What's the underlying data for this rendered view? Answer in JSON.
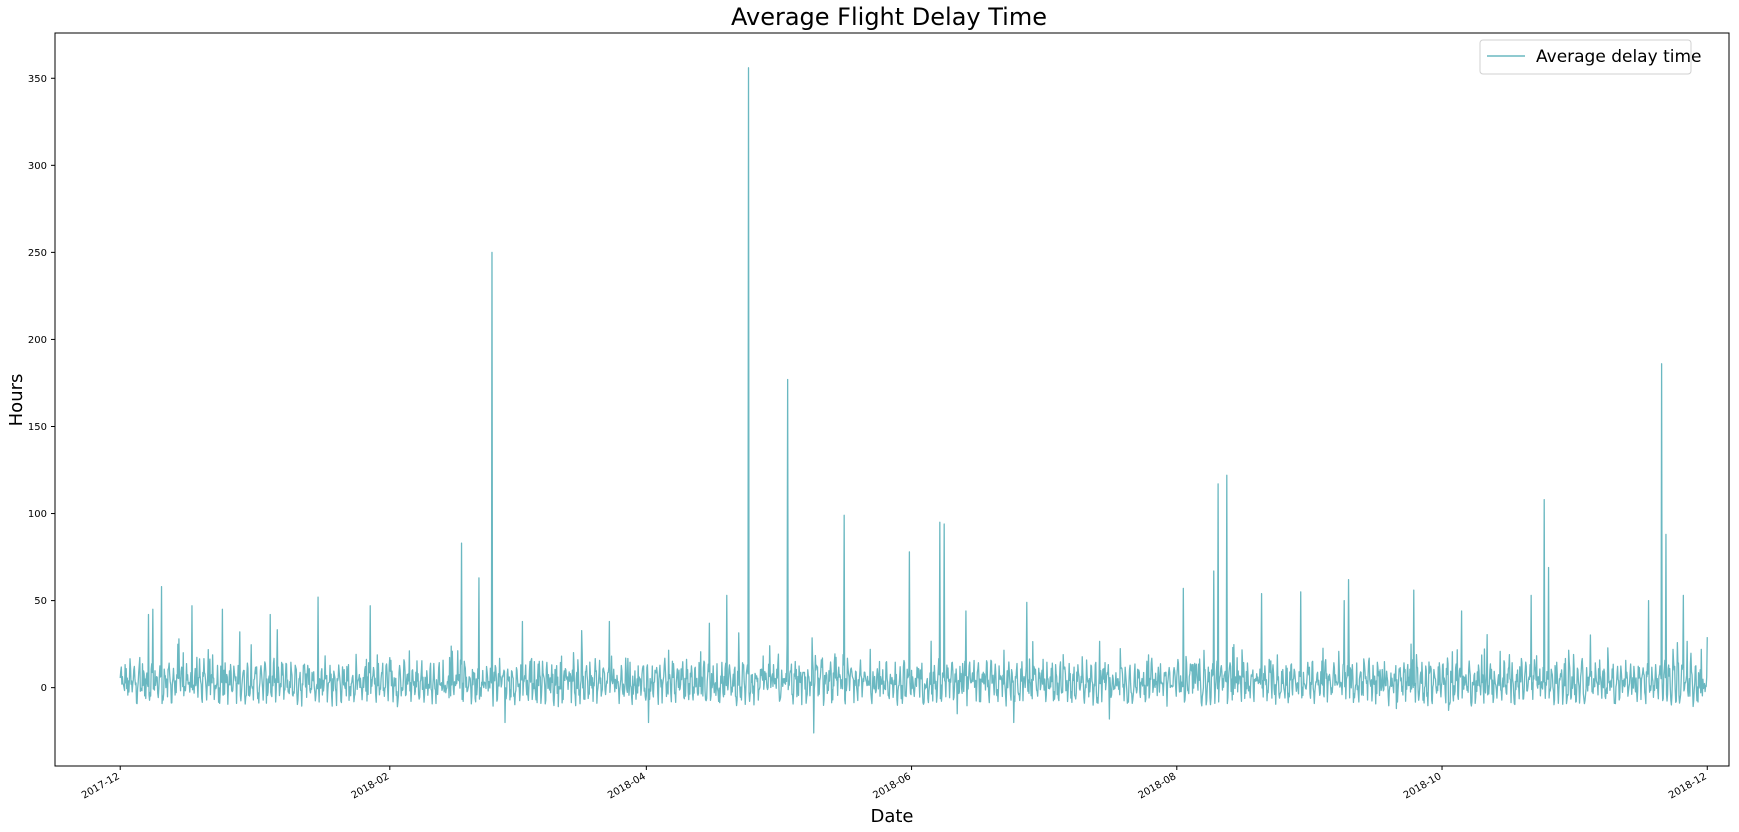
{
  "chart_data": {
    "type": "line",
    "title": "Average Flight Delay Time",
    "xlabel": "Date",
    "ylabel": "Hours",
    "x_range": [
      "2017-11-16",
      "2018-12-06"
    ],
    "ylim": [
      -45,
      376
    ],
    "y_ticks": [
      0,
      50,
      100,
      150,
      200,
      250,
      300,
      350
    ],
    "x_ticks": [
      "2017-12",
      "2018-02",
      "2018-04",
      "2018-06",
      "2018-08",
      "2018-10",
      "2018-12"
    ],
    "x_tick_dates": [
      "2017-12-01",
      "2018-02-01",
      "2018-04-01",
      "2018-06-01",
      "2018-08-01",
      "2018-10-01",
      "2018-12-01"
    ],
    "grid": false,
    "legend": {
      "position": "top-right",
      "entries": [
        "Average delay time"
      ]
    },
    "series": [
      {
        "name": "Average delay time",
        "color": "#6ab8c1",
        "frequency": "hourly (approx.)",
        "start": "2017-12-01",
        "end": "2018-12-01",
        "peaks": [
          {
            "x": "2017-12-07",
            "y": 42
          },
          {
            "x": "2017-12-08",
            "y": 45
          },
          {
            "x": "2017-12-10",
            "y": 58
          },
          {
            "x": "2017-12-14",
            "y": 28
          },
          {
            "x": "2017-12-17",
            "y": 47
          },
          {
            "x": "2017-12-24",
            "y": 84
          },
          {
            "x": "2017-12-24",
            "y": 45
          },
          {
            "x": "2017-12-28",
            "y": 32
          },
          {
            "x": "2018-01-04",
            "y": 42
          },
          {
            "x": "2018-01-15",
            "y": 52
          },
          {
            "x": "2018-01-27",
            "y": 47
          },
          {
            "x": "2018-02-17",
            "y": 83
          },
          {
            "x": "2018-02-21",
            "y": 63
          },
          {
            "x": "2018-02-24",
            "y": 250
          },
          {
            "x": "2018-03-03",
            "y": 38
          },
          {
            "x": "2018-03-23",
            "y": 38
          },
          {
            "x": "2018-04-15",
            "y": 37
          },
          {
            "x": "2018-04-19",
            "y": 53
          },
          {
            "x": "2018-04-24",
            "y": 356
          },
          {
            "x": "2018-05-03",
            "y": 177
          },
          {
            "x": "2018-05-16",
            "y": 99
          },
          {
            "x": "2018-05-31",
            "y": 78
          },
          {
            "x": "2018-06-07",
            "y": 95
          },
          {
            "x": "2018-06-08",
            "y": 94
          },
          {
            "x": "2018-06-11",
            "y": 58
          },
          {
            "x": "2018-06-13",
            "y": 44
          },
          {
            "x": "2018-06-27",
            "y": 49
          },
          {
            "x": "2018-08-02",
            "y": 57
          },
          {
            "x": "2018-08-09",
            "y": 67
          },
          {
            "x": "2018-08-10",
            "y": 117
          },
          {
            "x": "2018-08-12",
            "y": 122
          },
          {
            "x": "2018-08-20",
            "y": 54
          },
          {
            "x": "2018-08-29",
            "y": 55
          },
          {
            "x": "2018-09-08",
            "y": 50
          },
          {
            "x": "2018-09-09",
            "y": 62
          },
          {
            "x": "2018-09-20",
            "y": 52
          },
          {
            "x": "2018-09-24",
            "y": 56
          },
          {
            "x": "2018-10-05",
            "y": 44
          },
          {
            "x": "2018-10-21",
            "y": 53
          },
          {
            "x": "2018-10-24",
            "y": 108
          },
          {
            "x": "2018-10-25",
            "y": 69
          },
          {
            "x": "2018-11-17",
            "y": 50
          },
          {
            "x": "2018-11-20",
            "y": 186
          },
          {
            "x": "2018-11-21",
            "y": 88
          },
          {
            "x": "2018-11-25",
            "y": 53
          }
        ],
        "troughs": [
          {
            "x": "2018-02-27",
            "y": -20
          },
          {
            "x": "2018-04-01",
            "y": -20
          },
          {
            "x": "2018-05-09",
            "y": -26
          },
          {
            "x": "2018-06-11",
            "y": -15
          },
          {
            "x": "2018-06-24",
            "y": -20
          },
          {
            "x": "2018-07-16",
            "y": -18
          },
          {
            "x": "2018-09-20",
            "y": -12
          },
          {
            "x": "2018-10-02",
            "y": -13
          }
        ]
      }
    ]
  }
}
